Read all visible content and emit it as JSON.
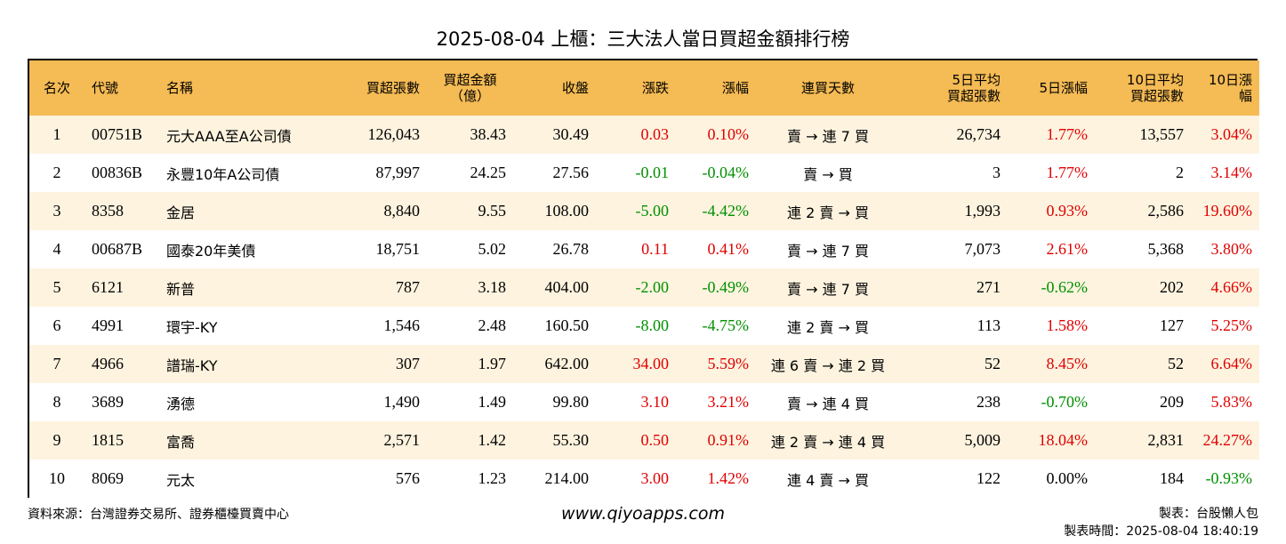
{
  "title": "2025-08-04 上櫃：三大法人當日買超金額排行榜",
  "headers": {
    "rank": "名次",
    "code": "代號",
    "name": "名稱",
    "shares": "買超張數",
    "amount_1": "買超金額",
    "amount_2": "（億）",
    "close": "收盤",
    "change": "漲跌",
    "pct": "漲幅",
    "streak": "連買天數",
    "avg5_1": "5日平均",
    "avg5_2": "買超張數",
    "pct5": "5日漲幅",
    "avg10_1": "10日平均",
    "avg10_2": "買超張數",
    "pct10": "10日漲幅"
  },
  "rows": [
    {
      "rank": "1",
      "code": "00751B",
      "name": "元大AAA至A公司債",
      "shares": "126,043",
      "amount": "38.43",
      "close": "30.49",
      "change": "0.03",
      "pct": "0.10%",
      "streak": "賣 → 連 7 買",
      "avg5": "26,734",
      "pct5": "1.77%",
      "avg10": "13,557",
      "pct10": "3.04%"
    },
    {
      "rank": "2",
      "code": "00836B",
      "name": "永豐10年A公司債",
      "shares": "87,997",
      "amount": "24.25",
      "close": "27.56",
      "change": "-0.01",
      "pct": "-0.04%",
      "streak": "賣 → 買",
      "avg5": "3",
      "pct5": "1.77%",
      "avg10": "2",
      "pct10": "3.14%"
    },
    {
      "rank": "3",
      "code": "8358",
      "name": "金居",
      "shares": "8,840",
      "amount": "9.55",
      "close": "108.00",
      "change": "-5.00",
      "pct": "-4.42%",
      "streak": "連 2 賣 → 買",
      "avg5": "1,993",
      "pct5": "0.93%",
      "avg10": "2,586",
      "pct10": "19.60%"
    },
    {
      "rank": "4",
      "code": "00687B",
      "name": "國泰20年美債",
      "shares": "18,751",
      "amount": "5.02",
      "close": "26.78",
      "change": "0.11",
      "pct": "0.41%",
      "streak": "賣 → 連 7 買",
      "avg5": "7,073",
      "pct5": "2.61%",
      "avg10": "5,368",
      "pct10": "3.80%"
    },
    {
      "rank": "5",
      "code": "6121",
      "name": "新普",
      "shares": "787",
      "amount": "3.18",
      "close": "404.00",
      "change": "-2.00",
      "pct": "-0.49%",
      "streak": "賣 → 連 7 買",
      "avg5": "271",
      "pct5": "-0.62%",
      "avg10": "202",
      "pct10": "4.66%"
    },
    {
      "rank": "6",
      "code": "4991",
      "name": "環宇-KY",
      "shares": "1,546",
      "amount": "2.48",
      "close": "160.50",
      "change": "-8.00",
      "pct": "-4.75%",
      "streak": "連 2 賣 → 買",
      "avg5": "113",
      "pct5": "1.58%",
      "avg10": "127",
      "pct10": "5.25%"
    },
    {
      "rank": "7",
      "code": "4966",
      "name": "譜瑞-KY",
      "shares": "307",
      "amount": "1.97",
      "close": "642.00",
      "change": "34.00",
      "pct": "5.59%",
      "streak": "連 6 賣 → 連 2 買",
      "avg5": "52",
      "pct5": "8.45%",
      "avg10": "52",
      "pct10": "6.64%"
    },
    {
      "rank": "8",
      "code": "3689",
      "name": "湧德",
      "shares": "1,490",
      "amount": "1.49",
      "close": "99.80",
      "change": "3.10",
      "pct": "3.21%",
      "streak": "賣 → 連 4 買",
      "avg5": "238",
      "pct5": "-0.70%",
      "avg10": "209",
      "pct10": "5.83%"
    },
    {
      "rank": "9",
      "code": "1815",
      "name": "富喬",
      "shares": "2,571",
      "amount": "1.42",
      "close": "55.30",
      "change": "0.50",
      "pct": "0.91%",
      "streak": "連 2 賣 → 連 4 買",
      "avg5": "5,009",
      "pct5": "18.04%",
      "avg10": "2,831",
      "pct10": "24.27%"
    },
    {
      "rank": "10",
      "code": "8069",
      "name": "元太",
      "shares": "576",
      "amount": "1.23",
      "close": "214.00",
      "change": "3.00",
      "pct": "1.42%",
      "streak": "連 4 賣 → 買",
      "avg5": "122",
      "pct5": "0.00%",
      "avg10": "184",
      "pct10": "-0.93%"
    }
  ],
  "footer": {
    "source": "資料來源：台灣證券交易所、證券櫃檯買賣中心",
    "website": "www.qiyoapps.com",
    "maker": "製表：台股懶人包",
    "made_time": "製表時間：2025-08-04 18:40:19"
  },
  "colors": {
    "header_bg": "#f5bb54",
    "row_alt_bg": "#fdf3df",
    "up": "#e00000",
    "down": "#009000"
  }
}
